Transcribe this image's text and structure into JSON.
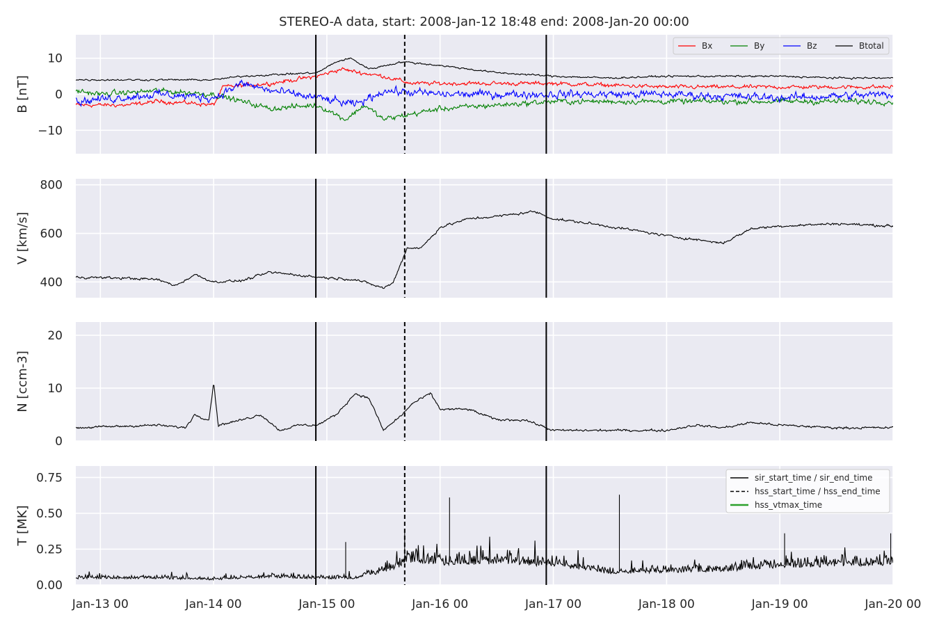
{
  "figure": {
    "title": "STEREO-A data, start: 2008-Jan-12 18:48  end: 2008-Jan-20 00:00"
  },
  "colors": {
    "panel_bg": "#eaeaf2",
    "grid": "#ffffff",
    "bx": "#ff0000",
    "by": "#008000",
    "bz": "#0000ff",
    "btotal": "#000000",
    "vtmax": "#2ca02c"
  },
  "chart_data": {
    "type": "line",
    "x_range": [
      "2008-01-12T18:48",
      "2008-01-20T00:00"
    ],
    "x_tick_labels": [
      "Jan-13 00",
      "Jan-14 00",
      "Jan-15 00",
      "Jan-16 00",
      "Jan-17 00",
      "Jan-18 00",
      "Jan-19 00",
      "Jan-20 00"
    ],
    "x_ticks": [
      "2008-01-13T00:00",
      "2008-01-14T00:00",
      "2008-01-15T00:00",
      "2008-01-16T00:00",
      "2008-01-17T00:00",
      "2008-01-18T00:00",
      "2008-01-19T00:00",
      "2008-01-20T00:00"
    ],
    "grid": true,
    "event_lines": [
      {
        "time": "2008-01-14T21:40",
        "style": "solid",
        "legend": "sir_start_time / sir_end_time"
      },
      {
        "time": "2008-01-15T16:30",
        "style": "dashed",
        "legend": "hss_start_time / hss_end_time"
      },
      {
        "time": "2008-01-16T22:30",
        "style": "solid"
      }
    ],
    "event_legend": [
      {
        "label": "sir_start_time / sir_end_time",
        "style": "solid"
      },
      {
        "label": "hss_start_time / hss_end_time",
        "style": "dashed"
      },
      {
        "label": "hss_vtmax_time",
        "style": "green"
      }
    ],
    "event_legend_position": "top-right",
    "panels": [
      {
        "id": "b",
        "ylabel": "B [nT]",
        "ylim": [
          -16.5,
          16.5
        ],
        "yticks": [
          -10,
          0,
          10
        ],
        "ytick_labels": [
          "−10",
          "0",
          "10"
        ],
        "legend_position": "top-right",
        "series": [
          {
            "name": "Bx",
            "color": "#ff0000",
            "noise": 0.9,
            "points": [
              [
                "2008-01-12T18:48",
                -3
              ],
              [
                "2008-01-13T06:00",
                -3
              ],
              [
                "2008-01-13T12:00",
                -2
              ],
              [
                "2008-01-13T20:00",
                -2.5
              ],
              [
                "2008-01-14T00:00",
                -3
              ],
              [
                "2008-01-14T02:00",
                2
              ],
              [
                "2008-01-14T12:00",
                3
              ],
              [
                "2008-01-14T22:00",
                5
              ],
              [
                "2008-01-15T03:00",
                7
              ],
              [
                "2008-01-15T07:00",
                6
              ],
              [
                "2008-01-15T12:00",
                5
              ],
              [
                "2008-01-15T18:00",
                3
              ],
              [
                "2008-01-16T00:00",
                3
              ],
              [
                "2008-01-16T12:00",
                3
              ],
              [
                "2008-01-17T00:00",
                3
              ],
              [
                "2008-01-17T12:00",
                2.5
              ],
              [
                "2008-01-18T00:00",
                2
              ],
              [
                "2008-01-18T12:00",
                2
              ],
              [
                "2008-01-19T00:00",
                2
              ],
              [
                "2008-01-20T00:00",
                2
              ]
            ]
          },
          {
            "name": "By",
            "color": "#008000",
            "noise": 1.2,
            "points": [
              [
                "2008-01-12T18:48",
                1
              ],
              [
                "2008-01-13T00:00",
                0
              ],
              [
                "2008-01-13T12:00",
                1
              ],
              [
                "2008-01-14T00:00",
                0
              ],
              [
                "2008-01-14T06:00",
                -2
              ],
              [
                "2008-01-14T12:00",
                -4
              ],
              [
                "2008-01-14T22:00",
                -3
              ],
              [
                "2008-01-15T04:00",
                -7
              ],
              [
                "2008-01-15T08:00",
                -3
              ],
              [
                "2008-01-15T12:00",
                -7
              ],
              [
                "2008-01-15T20:00",
                -5
              ],
              [
                "2008-01-16T00:00",
                -4
              ],
              [
                "2008-01-16T12:00",
                -3
              ],
              [
                "2008-01-17T00:00",
                -2
              ],
              [
                "2008-01-18T00:00",
                -2
              ],
              [
                "2008-01-18T12:00",
                -2
              ],
              [
                "2008-01-19T00:00",
                -2
              ],
              [
                "2008-01-20T00:00",
                -2
              ]
            ]
          },
          {
            "name": "Bz",
            "color": "#0000ff",
            "noise": 1.8,
            "points": [
              [
                "2008-01-12T18:48",
                -2
              ],
              [
                "2008-01-13T12:00",
                0
              ],
              [
                "2008-01-14T00:00",
                -1
              ],
              [
                "2008-01-14T06:00",
                3
              ],
              [
                "2008-01-14T12:00",
                1
              ],
              [
                "2008-01-14T22:00",
                -1
              ],
              [
                "2008-01-15T06:00",
                -3
              ],
              [
                "2008-01-15T12:00",
                1
              ],
              [
                "2008-01-16T00:00",
                0
              ],
              [
                "2008-01-17T00:00",
                0
              ],
              [
                "2008-01-18T00:00",
                0
              ],
              [
                "2008-01-19T00:00",
                -1
              ],
              [
                "2008-01-20T00:00",
                0
              ]
            ]
          },
          {
            "name": "Btotal",
            "color": "#000000",
            "noise": 0.4,
            "points": [
              [
                "2008-01-12T18:48",
                4
              ],
              [
                "2008-01-13T12:00",
                4
              ],
              [
                "2008-01-14T00:00",
                4
              ],
              [
                "2008-01-14T06:00",
                5
              ],
              [
                "2008-01-14T22:00",
                6
              ],
              [
                "2008-01-15T02:00",
                9
              ],
              [
                "2008-01-15T05:00",
                10
              ],
              [
                "2008-01-15T09:00",
                7
              ],
              [
                "2008-01-15T16:00",
                9
              ],
              [
                "2008-01-16T00:00",
                8
              ],
              [
                "2008-01-16T12:00",
                6
              ],
              [
                "2008-01-17T00:00",
                5
              ],
              [
                "2008-01-17T12:00",
                4.5
              ],
              [
                "2008-01-18T00:00",
                5
              ],
              [
                "2008-01-18T12:00",
                5
              ],
              [
                "2008-01-19T00:00",
                5
              ],
              [
                "2008-01-19T12:00",
                4.5
              ],
              [
                "2008-01-20T00:00",
                4.5
              ]
            ]
          }
        ]
      },
      {
        "id": "v",
        "ylabel": "V [km/s]",
        "ylim": [
          335,
          825
        ],
        "yticks": [
          400,
          600,
          800
        ],
        "ytick_labels": [
          "400",
          "600",
          "800"
        ],
        "series": [
          {
            "name": "",
            "color": "#000000",
            "noise": 8,
            "points": [
              [
                "2008-01-12T18:48",
                420
              ],
              [
                "2008-01-13T06:00",
                415
              ],
              [
                "2008-01-13T12:00",
                410
              ],
              [
                "2008-01-13T16:00",
                385
              ],
              [
                "2008-01-13T20:00",
                430
              ],
              [
                "2008-01-14T00:00",
                400
              ],
              [
                "2008-01-14T06:00",
                405
              ],
              [
                "2008-01-14T12:00",
                440
              ],
              [
                "2008-01-14T22:00",
                420
              ],
              [
                "2008-01-15T06:00",
                410
              ],
              [
                "2008-01-15T12:00",
                375
              ],
              [
                "2008-01-15T14:00",
                395
              ],
              [
                "2008-01-15T17:00",
                540
              ],
              [
                "2008-01-15T20:00",
                540
              ],
              [
                "2008-01-16T00:00",
                625
              ],
              [
                "2008-01-16T06:00",
                660
              ],
              [
                "2008-01-16T12:00",
                670
              ],
              [
                "2008-01-16T20:00",
                690
              ],
              [
                "2008-01-17T00:00",
                660
              ],
              [
                "2008-01-17T08:00",
                640
              ],
              [
                "2008-01-17T18:00",
                610
              ],
              [
                "2008-01-18T00:00",
                590
              ],
              [
                "2008-01-18T06:00",
                575
              ],
              [
                "2008-01-18T12:00",
                560
              ],
              [
                "2008-01-18T18:00",
                620
              ],
              [
                "2008-01-19T00:00",
                630
              ],
              [
                "2008-01-19T12:00",
                640
              ],
              [
                "2008-01-20T00:00",
                630
              ]
            ]
          }
        ]
      },
      {
        "id": "n",
        "ylabel": "N [ccm-3]",
        "ylim": [
          0,
          22.5
        ],
        "yticks": [
          0,
          10,
          20
        ],
        "ytick_labels": [
          "0",
          "10",
          "20"
        ],
        "series": [
          {
            "name": "",
            "color": "#000000",
            "noise": 0.35,
            "points": [
              [
                "2008-01-12T18:48",
                2.5
              ],
              [
                "2008-01-13T12:00",
                3
              ],
              [
                "2008-01-13T18:00",
                2.5
              ],
              [
                "2008-01-13T20:00",
                5
              ],
              [
                "2008-01-13T23:00",
                4
              ],
              [
                "2008-01-14T00:00",
                11
              ],
              [
                "2008-01-14T01:00",
                3
              ],
              [
                "2008-01-14T06:00",
                4
              ],
              [
                "2008-01-14T10:00",
                5
              ],
              [
                "2008-01-14T14:00",
                2
              ],
              [
                "2008-01-14T18:00",
                3
              ],
              [
                "2008-01-14T22:00",
                3
              ],
              [
                "2008-01-15T02:00",
                5
              ],
              [
                "2008-01-15T06:00",
                9
              ],
              [
                "2008-01-15T09:00",
                8
              ],
              [
                "2008-01-15T12:00",
                2
              ],
              [
                "2008-01-15T16:00",
                5
              ],
              [
                "2008-01-15T18:00",
                7
              ],
              [
                "2008-01-15T22:00",
                9
              ],
              [
                "2008-01-16T00:00",
                6
              ],
              [
                "2008-01-16T06:00",
                6
              ],
              [
                "2008-01-16T12:00",
                4
              ],
              [
                "2008-01-16T18:00",
                4
              ],
              [
                "2008-01-17T00:00",
                2
              ],
              [
                "2008-01-17T12:00",
                2
              ],
              [
                "2008-01-18T00:00",
                2
              ],
              [
                "2008-01-18T06:00",
                3
              ],
              [
                "2008-01-18T12:00",
                2.5
              ],
              [
                "2008-01-18T18:00",
                3.5
              ],
              [
                "2008-01-19T00:00",
                3
              ],
              [
                "2008-01-19T12:00",
                2.5
              ],
              [
                "2008-01-20T00:00",
                2.5
              ]
            ]
          }
        ]
      },
      {
        "id": "t",
        "ylabel": "T [MK]",
        "ylim": [
          0,
          0.83
        ],
        "yticks": [
          0,
          0.25,
          0.5,
          0.75
        ],
        "ytick_labels": [
          "0.00",
          "0.25",
          "0.50",
          "0.75"
        ],
        "series": [
          {
            "name": "",
            "color": "#000000",
            "noise": 0.02,
            "spiky": true,
            "points": [
              [
                "2008-01-12T18:48",
                0.05
              ],
              [
                "2008-01-13T12:00",
                0.05
              ],
              [
                "2008-01-14T00:00",
                0.04
              ],
              [
                "2008-01-14T12:00",
                0.06
              ],
              [
                "2008-01-14T22:00",
                0.05
              ],
              [
                "2008-01-15T06:00",
                0.05
              ],
              [
                "2008-01-15T12:00",
                0.1
              ],
              [
                "2008-01-15T18:00",
                0.18
              ],
              [
                "2008-01-16T00:00",
                0.16
              ],
              [
                "2008-01-16T12:00",
                0.17
              ],
              [
                "2008-01-17T00:00",
                0.15
              ],
              [
                "2008-01-17T12:00",
                0.09
              ],
              [
                "2008-01-18T00:00",
                0.1
              ],
              [
                "2008-01-18T12:00",
                0.11
              ],
              [
                "2008-01-19T00:00",
                0.14
              ],
              [
                "2008-01-19T12:00",
                0.15
              ],
              [
                "2008-01-20T00:00",
                0.16
              ]
            ],
            "spikes": [
              [
                "2008-01-15T16:30",
                0.37
              ],
              [
                "2008-01-16T02:00",
                0.61
              ],
              [
                "2008-01-17T14:00",
                0.63
              ],
              [
                "2008-01-19T01:00",
                0.36
              ],
              [
                "2008-01-19T23:30",
                0.36
              ],
              [
                "2008-01-15T04:00",
                0.3
              ]
            ]
          }
        ]
      }
    ]
  }
}
